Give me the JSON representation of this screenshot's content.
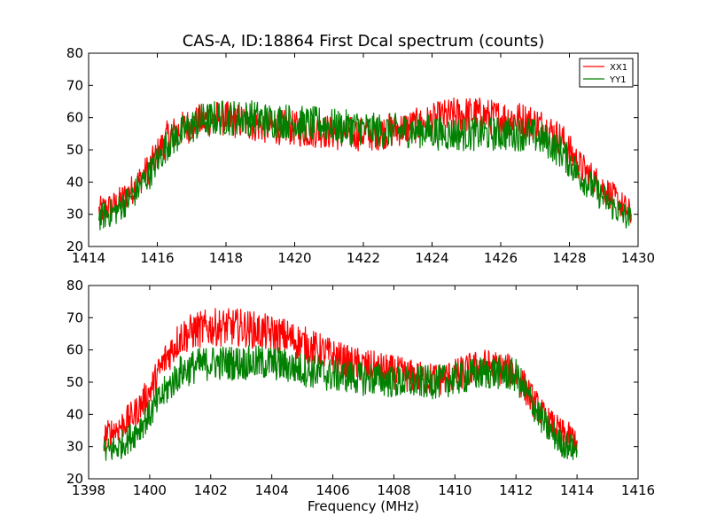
{
  "chart_data": [
    {
      "type": "line",
      "title": "CAS-A, ID:18864 First Dcal spectrum (counts)",
      "xlabel": "",
      "ylabel": "",
      "xlim": [
        1414,
        1430
      ],
      "ylim": [
        20,
        80
      ],
      "xticks": [
        1414,
        1416,
        1418,
        1420,
        1422,
        1424,
        1426,
        1428,
        1430
      ],
      "yticks": [
        20,
        30,
        40,
        50,
        60,
        70,
        80
      ],
      "grid": false,
      "legend": "top-right",
      "series": [
        {
          "name": "XX1",
          "color": "#ff0000",
          "x": [
            1414.3,
            1414.8,
            1415.3,
            1415.8,
            1416.3,
            1416.8,
            1417.3,
            1417.8,
            1418.3,
            1418.8,
            1419.3,
            1419.8,
            1420.3,
            1420.8,
            1421.3,
            1421.8,
            1422.3,
            1422.8,
            1423.3,
            1423.8,
            1424.3,
            1424.8,
            1425.3,
            1425.8,
            1426.3,
            1426.8,
            1427.3,
            1427.8,
            1428.3,
            1428.8,
            1429.3,
            1429.8
          ],
          "y": [
            31,
            33,
            38,
            45,
            54,
            57,
            59,
            60,
            59,
            58,
            57,
            57,
            56,
            56,
            55,
            55,
            55,
            56,
            57,
            58,
            60,
            61,
            61,
            60,
            60,
            59,
            57,
            53,
            45,
            40,
            35,
            30
          ]
        },
        {
          "name": "YY1",
          "color": "#008000",
          "x": [
            1414.3,
            1414.8,
            1415.3,
            1415.8,
            1416.3,
            1416.8,
            1417.3,
            1417.8,
            1418.3,
            1418.8,
            1419.3,
            1419.8,
            1420.3,
            1420.8,
            1421.3,
            1421.8,
            1422.3,
            1422.8,
            1423.3,
            1423.8,
            1424.3,
            1424.8,
            1425.3,
            1425.8,
            1426.3,
            1426.8,
            1427.3,
            1427.8,
            1428.3,
            1428.8,
            1429.3,
            1429.8
          ],
          "y": [
            29,
            31,
            36,
            43,
            52,
            56,
            59,
            60,
            60,
            60,
            59,
            59,
            58,
            58,
            57,
            57,
            56,
            56,
            56,
            56,
            55,
            55,
            55,
            55,
            55,
            55,
            53,
            49,
            42,
            37,
            32,
            28
          ]
        }
      ]
    },
    {
      "type": "line",
      "title": "",
      "xlabel": "Frequency (MHz)",
      "ylabel": "",
      "xlim": [
        1398,
        1416
      ],
      "ylim": [
        20,
        80
      ],
      "xticks": [
        1398,
        1400,
        1402,
        1404,
        1406,
        1408,
        1410,
        1412,
        1414,
        1416
      ],
      "yticks": [
        20,
        30,
        40,
        50,
        60,
        70,
        80
      ],
      "grid": false,
      "series": [
        {
          "color": "#ff0000",
          "x": [
            1398.5,
            1399.0,
            1399.5,
            1400.0,
            1400.5,
            1401.0,
            1401.5,
            1402.0,
            1402.5,
            1403.0,
            1403.5,
            1404.0,
            1404.5,
            1405.0,
            1405.5,
            1406.0,
            1406.5,
            1407.0,
            1407.5,
            1408.0,
            1408.5,
            1409.0,
            1409.5,
            1410.0,
            1410.5,
            1411.0,
            1411.5,
            1412.0,
            1412.5,
            1413.0,
            1413.5,
            1414.0
          ],
          "y": [
            33,
            36,
            40,
            47,
            57,
            64,
            66,
            67,
            67,
            67,
            66,
            65,
            64,
            62,
            60,
            58,
            56,
            55,
            54,
            53,
            52,
            51,
            51,
            52,
            54,
            55,
            54,
            53,
            45,
            38,
            34,
            32
          ]
        },
        {
          "color": "#008000",
          "x": [
            1398.5,
            1399.0,
            1399.5,
            1400.0,
            1400.5,
            1401.0,
            1401.5,
            1402.0,
            1402.5,
            1403.0,
            1403.5,
            1404.0,
            1404.5,
            1405.0,
            1405.5,
            1406.0,
            1406.5,
            1407.0,
            1407.5,
            1408.0,
            1408.5,
            1409.0,
            1409.5,
            1410.0,
            1410.5,
            1411.0,
            1411.5,
            1412.0,
            1412.5,
            1413.0,
            1413.5,
            1414.0
          ],
          "y": [
            28,
            30,
            34,
            40,
            47,
            53,
            55,
            56,
            56,
            56,
            56,
            56,
            55,
            54,
            53,
            52,
            52,
            51,
            51,
            50,
            50,
            50,
            50,
            51,
            52,
            53,
            53,
            52,
            44,
            36,
            31,
            29
          ]
        }
      ]
    }
  ]
}
